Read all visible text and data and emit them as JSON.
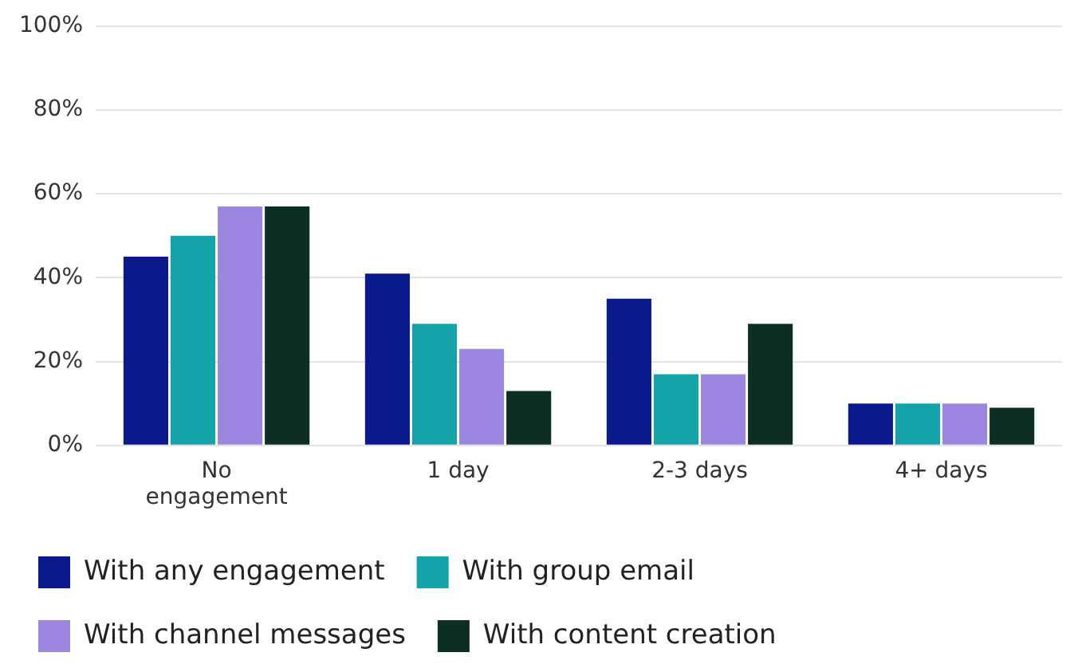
{
  "chart_data": {
    "type": "bar",
    "categories": [
      "No engagement",
      "1 day",
      "2-3 days",
      "4+ days"
    ],
    "series": [
      {
        "name": "With any engagement",
        "color": "#0a1a8c",
        "values": [
          45,
          41,
          35,
          10
        ]
      },
      {
        "name": "With group email",
        "color": "#14a3a8",
        "values": [
          50,
          29,
          17,
          10
        ]
      },
      {
        "name": "With channel messages",
        "color": "#9b87e0",
        "values": [
          57,
          23,
          17,
          10
        ]
      },
      {
        "name": "With content creation",
        "color": "#0d2e22",
        "values": [
          57,
          13,
          29,
          9
        ]
      }
    ],
    "ylim": [
      0,
      100
    ],
    "yticks": [
      {
        "value": 0,
        "label": "0%"
      },
      {
        "value": 20,
        "label": "20%"
      },
      {
        "value": 40,
        "label": "40%"
      },
      {
        "value": 60,
        "label": "60%"
      },
      {
        "value": 80,
        "label": "80%"
      },
      {
        "value": 100,
        "label": "100%"
      }
    ],
    "grid": "y",
    "legend": "bottom"
  }
}
